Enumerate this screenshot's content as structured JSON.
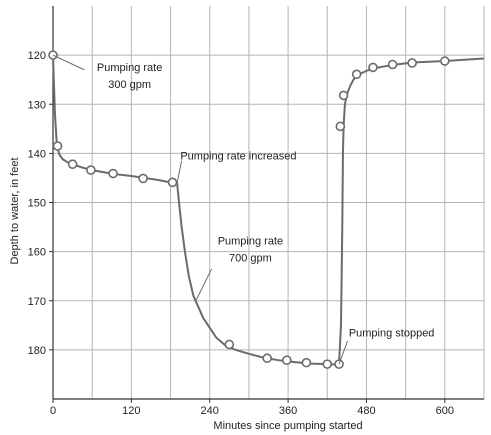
{
  "chart_data": {
    "type": "line",
    "xlabel": "Minutes since pumping started",
    "ylabel": "Depth to water, in feet",
    "xlim": [
      0,
      660
    ],
    "ylim": [
      190,
      110
    ],
    "y_inverted": true,
    "grid": true,
    "x_ticks": [
      {
        "value": 0,
        "label": "0"
      },
      {
        "value": 120,
        "label": "120"
      },
      {
        "value": 240,
        "label": "240"
      },
      {
        "value": 360,
        "label": "360"
      },
      {
        "value": 480,
        "label": "480"
      },
      {
        "value": 600,
        "label": "600"
      }
    ],
    "x_grid": [
      0,
      60,
      120,
      180,
      240,
      300,
      360,
      420,
      480,
      540,
      600,
      660
    ],
    "y_ticks": [
      {
        "value": 120,
        "label": "120"
      },
      {
        "value": 130,
        "label": "130"
      },
      {
        "value": 140,
        "label": "140"
      },
      {
        "value": 150,
        "label": "150"
      },
      {
        "value": 160,
        "label": "160"
      },
      {
        "value": 170,
        "label": "170"
      },
      {
        "value": 180,
        "label": "180"
      }
    ],
    "y_grid": [
      120,
      130,
      140,
      150,
      160,
      170,
      180
    ],
    "line_color": "#6b6b6b",
    "grid_color": "#b5b5b5",
    "axis_color": "#333333",
    "curve": [
      [
        0,
        120.0
      ],
      [
        3,
        132.0
      ],
      [
        6,
        138.5
      ],
      [
        10,
        140.3
      ],
      [
        15,
        141.2
      ],
      [
        22,
        141.8
      ],
      [
        30,
        142.2
      ],
      [
        45,
        142.9
      ],
      [
        60,
        143.4
      ],
      [
        80,
        143.9
      ],
      [
        100,
        144.3
      ],
      [
        120,
        144.6
      ],
      [
        140,
        145.0
      ],
      [
        160,
        145.4
      ],
      [
        180,
        145.9
      ],
      [
        185,
        146.0
      ],
      [
        190,
        146.0
      ],
      [
        193,
        150.0
      ],
      [
        197,
        155.0
      ],
      [
        202,
        160.0
      ],
      [
        208,
        165.0
      ],
      [
        215,
        169.0
      ],
      [
        230,
        173.5
      ],
      [
        250,
        177.5
      ],
      [
        265,
        179.2
      ],
      [
        280,
        180.0
      ],
      [
        300,
        180.8
      ],
      [
        320,
        181.5
      ],
      [
        345,
        182.1
      ],
      [
        370,
        182.5
      ],
      [
        395,
        182.8
      ],
      [
        420,
        182.9
      ],
      [
        438,
        183.0
      ],
      [
        441,
        175.0
      ],
      [
        443,
        155.0
      ],
      [
        444,
        140.0
      ],
      [
        445,
        134.5
      ],
      [
        447,
        130.0
      ],
      [
        450,
        128.0
      ],
      [
        455,
        126.3
      ],
      [
        460,
        125.0
      ],
      [
        467,
        124.0
      ],
      [
        480,
        123.2
      ],
      [
        495,
        122.6
      ],
      [
        520,
        122.0
      ],
      [
        550,
        121.5
      ],
      [
        600,
        121.2
      ],
      [
        660,
        120.7
      ]
    ],
    "points": [
      [
        0,
        120.0
      ],
      [
        7,
        138.5
      ],
      [
        30,
        142.2
      ],
      [
        58,
        143.4
      ],
      [
        92,
        144.1
      ],
      [
        138,
        145.1
      ],
      [
        183,
        145.9
      ],
      [
        270,
        178.9
      ],
      [
        328,
        181.7
      ],
      [
        358,
        182.1
      ],
      [
        388,
        182.6
      ],
      [
        420,
        182.9
      ],
      [
        438,
        182.9
      ],
      [
        440,
        134.5
      ],
      [
        445,
        128.2
      ],
      [
        465,
        123.9
      ],
      [
        490,
        122.5
      ],
      [
        520,
        121.9
      ],
      [
        550,
        121.6
      ],
      [
        600,
        121.2
      ]
    ],
    "annotations": [
      {
        "lines": [
          "Pumping rate",
          "300 gpm"
        ],
        "leader_from": [
          0,
          120.0
        ],
        "leader_to": [
          48,
          123.0
        ],
        "text_at": [
          53,
          123.2
        ]
      },
      {
        "lines": [
          "Pumping rate increased"
        ],
        "leader_from": [
          190,
          146.0
        ],
        "leader_to": [
          197,
          141.5
        ],
        "text_at": [
          195,
          141.2
        ]
      },
      {
        "lines": [
          "Pumping rate",
          "700 gpm"
        ],
        "leader_from": [
          218,
          170.2
        ],
        "leader_to": [
          243,
          163.5
        ],
        "text_at": [
          238,
          158.5
        ]
      },
      {
        "lines": [
          "Pumping stopped"
        ],
        "leader_from": [
          438,
          182.9
        ],
        "leader_to": [
          451,
          178.2
        ],
        "text_at": [
          453,
          177.3
        ]
      }
    ]
  }
}
